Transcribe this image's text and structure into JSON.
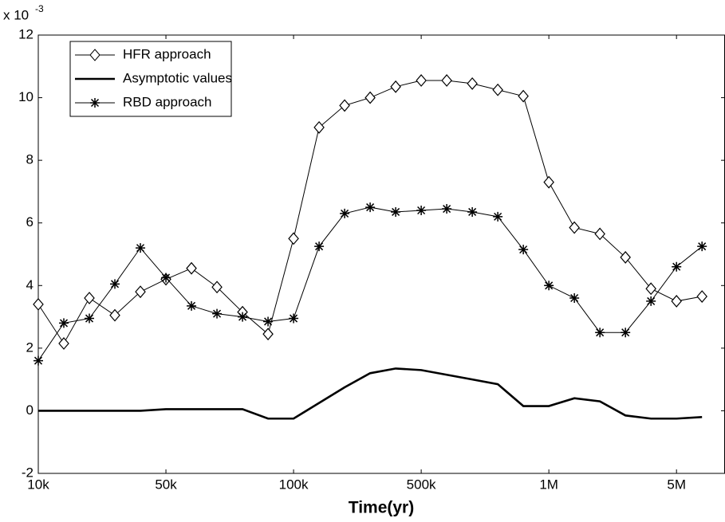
{
  "chart_data": {
    "type": "line",
    "xlabel": "Time(yr)",
    "y_multiplier": "x 10",
    "y_exponent": "-3",
    "x": [
      0,
      1,
      2,
      3,
      4,
      5,
      6,
      7,
      8,
      9,
      10,
      11,
      12,
      13,
      14,
      15,
      16,
      17,
      18,
      19,
      20,
      21,
      22,
      23,
      24,
      25,
      26
    ],
    "xlim": [
      0,
      26.9
    ],
    "xticks": [
      {
        "value": 0,
        "label": "10k"
      },
      {
        "value": 5,
        "label": "50k"
      },
      {
        "value": 10,
        "label": "100k"
      },
      {
        "value": 15,
        "label": "500k"
      },
      {
        "value": 20,
        "label": "1M"
      },
      {
        "value": 25,
        "label": "5M"
      }
    ],
    "ylim": [
      -2,
      12
    ],
    "yticks": [
      -2,
      0,
      2,
      4,
      6,
      8,
      10,
      12
    ],
    "legend": "upper left",
    "series": [
      {
        "name": "HFR approach",
        "color": "#000000",
        "marker": "diamond",
        "values": [
          3.4,
          2.15,
          3.6,
          3.05,
          3.8,
          4.2,
          4.55,
          3.95,
          3.15,
          2.45,
          5.5,
          9.05,
          9.75,
          10.0,
          10.35,
          10.55,
          10.55,
          10.45,
          10.25,
          10.05,
          7.3,
          5.85,
          5.65,
          4.9,
          3.9,
          3.5,
          3.65
        ]
      },
      {
        "name": "Asymptotic values",
        "color": "#000000",
        "marker": "none",
        "values": [
          0,
          0,
          0,
          0,
          0,
          0.05,
          0.05,
          0.05,
          0.05,
          -0.25,
          -0.25,
          0.25,
          0.75,
          1.2,
          1.35,
          1.3,
          1.15,
          1.0,
          0.85,
          0.15,
          0.15,
          0.4,
          0.3,
          -0.15,
          -0.25,
          -0.25,
          -0.2
        ]
      },
      {
        "name": "RBD approach",
        "color": "#000000",
        "marker": "star",
        "values": [
          1.6,
          2.8,
          2.95,
          4.05,
          5.2,
          4.25,
          3.35,
          3.1,
          3.0,
          2.85,
          2.95,
          5.25,
          6.3,
          6.5,
          6.35,
          6.4,
          6.45,
          6.35,
          6.2,
          5.15,
          4.0,
          3.6,
          2.5,
          2.5,
          3.5,
          4.6,
          5.25
        ]
      }
    ]
  }
}
